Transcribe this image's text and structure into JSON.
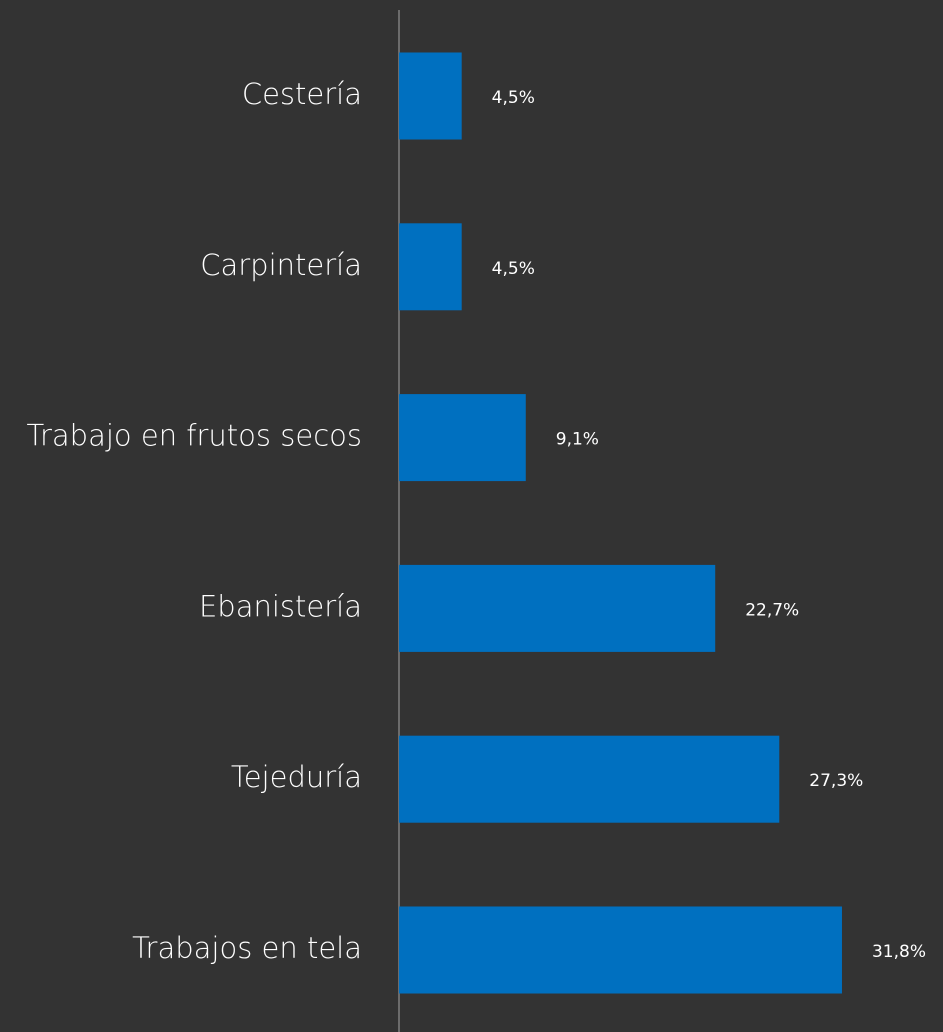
{
  "chart_data": {
    "type": "bar",
    "orientation": "horizontal",
    "categories": [
      "Cestería",
      "Carpintería",
      "Trabajo en frutos secos",
      "Ebanistería",
      "Tejeduría",
      "Trabajos en tela"
    ],
    "values": [
      4.5,
      4.5,
      9.1,
      22.7,
      27.3,
      31.8
    ],
    "value_labels": [
      "4,5%",
      "4,5%",
      "9,1%",
      "22,7%",
      "27,3%",
      "31,8%"
    ],
    "color": "#0070c0"
  }
}
